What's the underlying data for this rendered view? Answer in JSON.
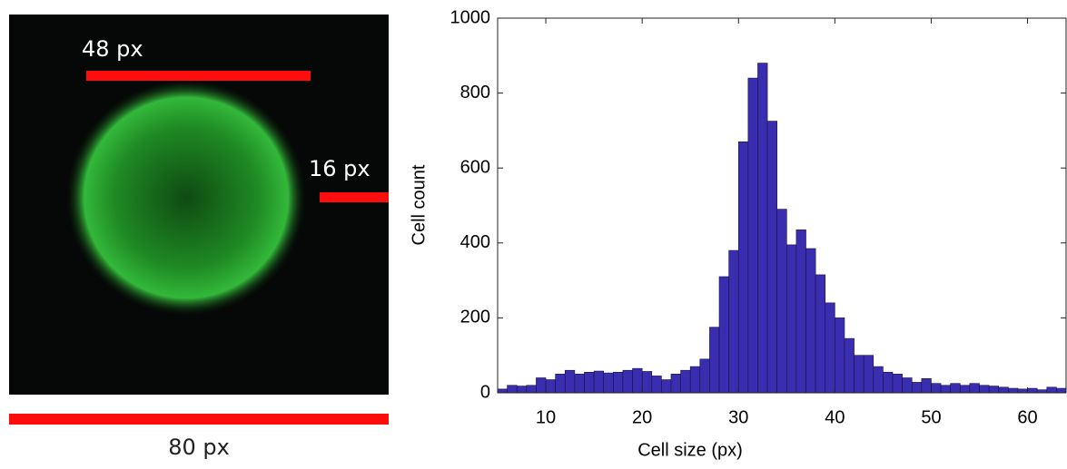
{
  "image_panel": {
    "labels": [
      "48 px",
      "16 px",
      "80 px"
    ]
  },
  "chart_data": {
    "type": "histogram",
    "x_label": "Cell size (px)",
    "y_label": "Cell count",
    "bins": [
      5,
      6,
      7,
      8,
      9,
      10,
      11,
      12,
      13,
      14,
      15,
      16,
      17,
      18,
      19,
      20,
      21,
      22,
      23,
      24,
      25,
      26,
      27,
      28,
      29,
      30,
      31,
      32,
      33,
      34,
      35,
      36,
      37,
      38,
      39,
      40,
      41,
      42,
      43,
      44,
      45,
      46,
      47,
      48,
      49,
      50,
      51,
      52,
      53,
      54,
      55,
      56,
      57,
      58,
      59,
      60,
      61,
      62,
      63,
      64
    ],
    "counts": [
      10,
      20,
      18,
      20,
      40,
      35,
      50,
      60,
      50,
      55,
      58,
      53,
      55,
      60,
      65,
      57,
      45,
      35,
      50,
      60,
      70,
      90,
      175,
      310,
      380,
      670,
      840,
      880,
      725,
      490,
      395,
      435,
      385,
      315,
      240,
      200,
      145,
      100,
      100,
      70,
      55,
      50,
      40,
      28,
      38,
      25,
      20,
      25,
      20,
      25,
      20,
      18,
      15,
      12,
      10,
      12,
      8,
      15,
      12
    ],
    "color": "#3a2eb0",
    "xlim": [
      5,
      64
    ],
    "ylim": [
      0,
      1000
    ],
    "xticks": [
      10,
      20,
      30,
      40,
      50,
      60
    ],
    "yticks": [
      0,
      200,
      400,
      600,
      800,
      1000
    ]
  }
}
